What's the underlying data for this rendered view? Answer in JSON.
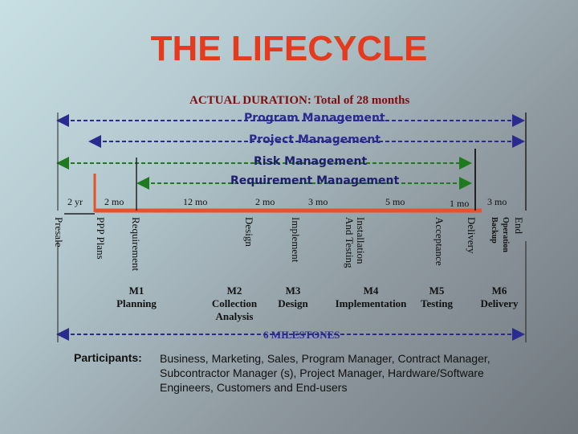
{
  "title": "THE LIFECYCLE",
  "duration_label": "ACTUAL DURATION: Total of 28 months",
  "bars": {
    "program": "Program Management",
    "project": "Project Management",
    "risk": "Risk Management",
    "requirement": "Requirement Management"
  },
  "durations": [
    "2 yr",
    "2 mo",
    "12 mo",
    "2 mo",
    "3 mo",
    "5 mo",
    "1 mo",
    "3 mo"
  ],
  "phases": [
    "Presale",
    "PPP Plans",
    "Requirement",
    "Design",
    "Implement",
    "Installation\nAnd Testing",
    "Acceptance",
    "Delivery"
  ],
  "end_phases": [
    "End",
    "Operation",
    "Backup"
  ],
  "milestones": [
    "M1\nPlanning",
    "M2\nCollection\nAnalysis",
    "M3\nDesign",
    "M4\nImplementation",
    "M5\nTesting",
    "M6\nDelivery"
  ],
  "milestones_label": "6 MILESTONES",
  "participants": {
    "heading": "Participants:",
    "text": "Business, Marketing, Sales, Program Manager, Contract Manager, Subcontractor Manager (s), Project Manager, Hardware/Software Engineers, Customers and End-users"
  },
  "colors": {
    "title": "#e63a1e",
    "timeline": "#e8522a",
    "program_line": "#2b2a8f",
    "risk_line": "#1f7a1f"
  }
}
